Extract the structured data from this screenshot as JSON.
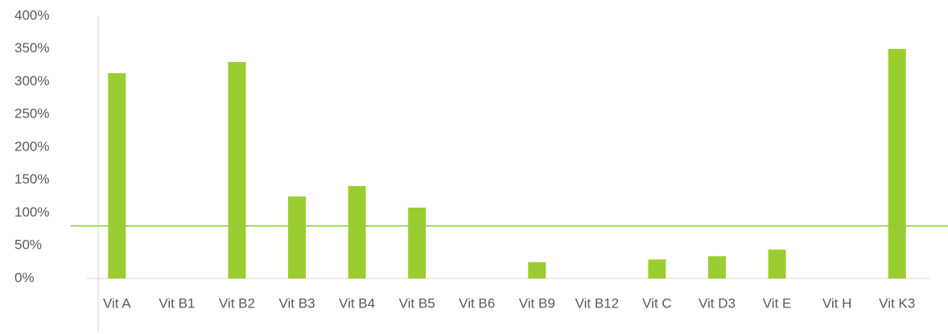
{
  "chart_data": {
    "type": "bar",
    "categories": [
      "Vit A",
      "Vit B1",
      "Vit B2",
      "Vit B3",
      "Vit B4",
      "Vit B5",
      "Vit B6",
      "Vit B9",
      "Vit B12",
      "Vit C",
      "Vit D3",
      "Vit E",
      "Vit H",
      "Vit K3"
    ],
    "values": [
      313,
      0,
      330,
      125,
      141,
      108,
      0,
      25,
      0,
      29,
      34,
      44,
      0,
      350
    ],
    "color": "#9acd32",
    "ylim": [
      0,
      400
    ],
    "yticks": [
      {
        "value": 0,
        "label": "0%"
      },
      {
        "value": 50,
        "label": "50%"
      },
      {
        "value": 100,
        "label": "100%"
      },
      {
        "value": 150,
        "label": "150%"
      },
      {
        "value": 200,
        "label": "200%"
      },
      {
        "value": 250,
        "label": "250%"
      },
      {
        "value": 300,
        "label": "300%"
      },
      {
        "value": 350,
        "label": "350%"
      },
      {
        "value": 400,
        "label": "400%"
      }
    ],
    "reference_line": {
      "value": 80,
      "color": "#92c83e"
    },
    "grid": false
  }
}
